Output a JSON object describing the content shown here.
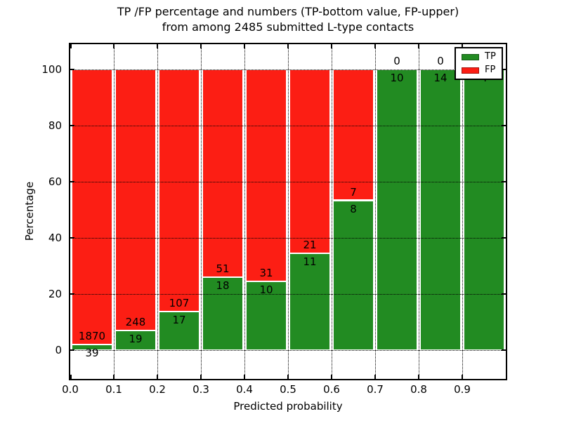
{
  "chart_data": {
    "type": "bar",
    "stacked": true,
    "title_line1": "TP /FP percentage and numbers (TP-bottom value, FP-upper)",
    "title_line2": "from among 2485 submitted L-type contacts",
    "xlabel": "Predicted probability",
    "ylabel": "Percentage",
    "total_contacts": 2485,
    "x_tick_values": [
      0.0,
      0.1,
      0.2,
      0.3,
      0.4,
      0.5,
      0.6,
      0.7,
      0.8,
      0.9
    ],
    "x_tick_labels": [
      "0.0",
      "0.1",
      "0.2",
      "0.3",
      "0.4",
      "0.5",
      "0.6",
      "0.7",
      "0.8",
      "0.9"
    ],
    "y_tick_values": [
      0,
      20,
      40,
      60,
      80,
      100
    ],
    "y_tick_labels": [
      "0",
      "20",
      "40",
      "60",
      "80",
      "100"
    ],
    "xlim": [
      0.0,
      1.0
    ],
    "ylim": [
      -10.3,
      109.0
    ],
    "grid": "dotted",
    "legend_position": "upper-right",
    "bins": [
      {
        "x0": 0.0,
        "x1": 0.1,
        "tp": 39,
        "fp": 1870
      },
      {
        "x0": 0.1,
        "x1": 0.2,
        "tp": 19,
        "fp": 248
      },
      {
        "x0": 0.2,
        "x1": 0.3,
        "tp": 17,
        "fp": 107
      },
      {
        "x0": 0.3,
        "x1": 0.4,
        "tp": 18,
        "fp": 51
      },
      {
        "x0": 0.4,
        "x1": 0.5,
        "tp": 10,
        "fp": 31
      },
      {
        "x0": 0.5,
        "x1": 0.6,
        "tp": 11,
        "fp": 21
      },
      {
        "x0": 0.6,
        "x1": 0.7,
        "tp": 8,
        "fp": 7
      },
      {
        "x0": 0.7,
        "x1": 0.8,
        "tp": 10,
        "fp": 0
      },
      {
        "x0": 0.8,
        "x1": 0.9,
        "tp": 14,
        "fp": 0
      },
      {
        "x0": 0.9,
        "x1": 1.0,
        "tp": 4,
        "fp": 0
      }
    ],
    "legend": [
      {
        "label": "TP",
        "color": "#228b22"
      },
      {
        "label": "FP",
        "color": "#fc1e14"
      }
    ],
    "colors": {
      "tp": "#228b22",
      "fp": "#fc1e14",
      "grid": "#000000",
      "background": "#ffffff",
      "bar_edge": "#ffffff"
    }
  }
}
